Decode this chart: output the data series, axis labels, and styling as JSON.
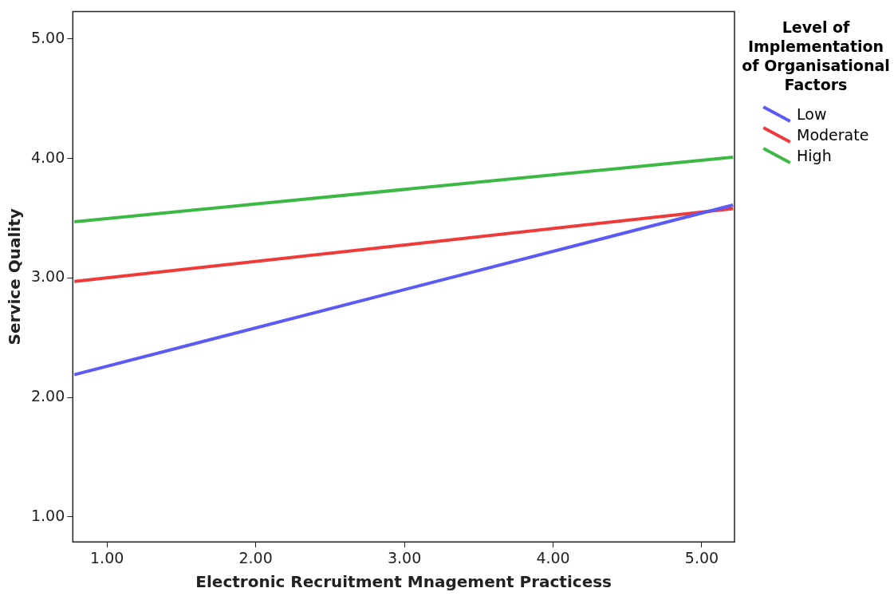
{
  "chart_data": {
    "type": "line",
    "xlabel": "Electronic Recruitment Mnagement Practicess",
    "ylabel": "Service Quality",
    "legend_title": "Level of Implementation of Organisational Factors",
    "legend": "right",
    "grid": false,
    "marker": "none",
    "line_style": "solid",
    "x": [
      0.78,
      5.21
    ],
    "xlim": [
      0.77,
      5.22
    ],
    "ylim": [
      0.79,
      5.23
    ],
    "xticks": [
      {
        "value": 1,
        "label": "1.00"
      },
      {
        "value": 2,
        "label": "2.00"
      },
      {
        "value": 3,
        "label": "3.00"
      },
      {
        "value": 4,
        "label": "4.00"
      },
      {
        "value": 5,
        "label": "5.00"
      }
    ],
    "yticks": [
      {
        "value": 1,
        "label": "1.00"
      },
      {
        "value": 2,
        "label": "2.00"
      },
      {
        "value": 3,
        "label": "3.00"
      },
      {
        "value": 4,
        "label": "4.00"
      },
      {
        "value": 5,
        "label": "5.00"
      }
    ],
    "series": [
      {
        "name": "Low",
        "color": "#5a5af5",
        "values": [
          2.19,
          3.61
        ]
      },
      {
        "name": "Moderate",
        "color": "#ef3a3a",
        "values": [
          2.97,
          3.58
        ]
      },
      {
        "name": "High",
        "color": "#3cb944",
        "values": [
          3.47,
          4.01
        ]
      }
    ]
  }
}
